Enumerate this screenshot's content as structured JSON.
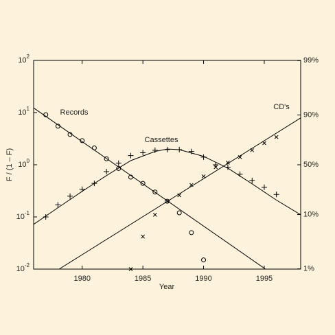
{
  "chart_data": {
    "type": "scatter",
    "y_label": "F / (1 – F)",
    "x_label": "Year",
    "xlim": [
      1976,
      1998
    ],
    "xticks": [
      1980,
      1985,
      1990,
      1995
    ],
    "ylim": [
      0.01,
      100
    ],
    "yscale": "log",
    "yticks": [
      {
        "value": 0.01,
        "label": "10",
        "exponent": "-2"
      },
      {
        "value": 0.1,
        "label": "10",
        "exponent": "-1"
      },
      {
        "value": 1,
        "label": "10",
        "exponent": "0"
      },
      {
        "value": 10,
        "label": "10",
        "exponent": "1"
      },
      {
        "value": 100,
        "label": "10",
        "exponent": "2"
      }
    ],
    "y2lim": [
      0.99,
      99.01
    ],
    "y2scale": "logit",
    "y2ticks": [
      {
        "value": 1,
        "label": "1%"
      },
      {
        "value": 10,
        "label": "10%"
      },
      {
        "value": 50,
        "label": "50%"
      },
      {
        "value": 90,
        "label": "90%"
      },
      {
        "value": 99,
        "label": "99%"
      }
    ],
    "color": "#000000",
    "series": [
      {
        "name": "Records",
        "marker": "circle",
        "x": [
          1977,
          1978,
          1979,
          1980,
          1981,
          1982,
          1983,
          1984,
          1985,
          1986,
          1987,
          1988,
          1989,
          1990
        ],
        "values": [
          9.1,
          5.5,
          3.8,
          2.9,
          2.1,
          1.3,
          0.85,
          0.58,
          0.44,
          0.3,
          0.2,
          0.12,
          0.05,
          0.015
        ],
        "fit": {
          "x": [
            1976,
            1995.1
          ],
          "values": [
            12.3,
            0.01
          ]
        }
      },
      {
        "name": "Cassettes",
        "marker": "plus",
        "x": [
          1977,
          1978,
          1979,
          1980,
          1981,
          1982,
          1983,
          1984,
          1985,
          1986,
          1987,
          1988,
          1989,
          1990,
          1991,
          1992,
          1993,
          1994,
          1995,
          1996
        ],
        "values": [
          0.1,
          0.17,
          0.25,
          0.34,
          0.44,
          0.74,
          1.07,
          1.5,
          1.7,
          1.9,
          1.95,
          1.95,
          1.8,
          1.4,
          1.0,
          0.9,
          0.66,
          0.5,
          0.37,
          0.27
        ],
        "fit": {
          "x": [
            1976,
            1978,
            1980,
            1982,
            1984,
            1986,
            1987,
            1988,
            1990,
            1992,
            1994,
            1996,
            1998
          ],
          "values": [
            0.072,
            0.15,
            0.31,
            0.62,
            1.2,
            1.8,
            2.0,
            1.95,
            1.45,
            0.86,
            0.43,
            0.21,
            0.11
          ]
        }
      },
      {
        "name": "CD's",
        "marker": "x",
        "x": [
          1984,
          1985,
          1986,
          1987,
          1988,
          1989,
          1990,
          1991,
          1992,
          1993,
          1994,
          1995,
          1996
        ],
        "values": [
          0.01,
          0.042,
          0.11,
          0.2,
          0.26,
          0.41,
          0.6,
          0.9,
          1.1,
          1.4,
          1.9,
          2.6,
          3.4
        ],
        "fit": {
          "x": [
            1978.1,
            1998
          ],
          "values": [
            0.01,
            7.9
          ]
        }
      }
    ]
  }
}
